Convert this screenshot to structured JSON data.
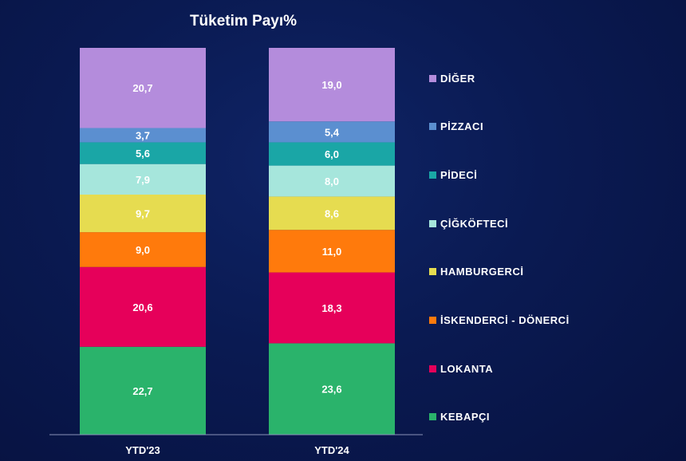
{
  "chart_data": {
    "type": "bar",
    "stacked": true,
    "percent_stacked": true,
    "title": "Tüketim Payı%",
    "categories": [
      "YTD'23",
      "YTD'24"
    ],
    "series": [
      {
        "name": "KEBAPÇI",
        "color": "#2ab36b",
        "values": [
          22.7,
          23.6
        ],
        "labels": [
          "22,7",
          "23,6"
        ]
      },
      {
        "name": "LOKANTA",
        "color": "#e6005a",
        "values": [
          20.6,
          18.3
        ],
        "labels": [
          "20,6",
          "18,3"
        ]
      },
      {
        "name": "İSKENDERCİ - DÖNERCİ",
        "color": "#ff7a0c",
        "values": [
          9.0,
          11.0
        ],
        "labels": [
          "9,0",
          "11,0"
        ]
      },
      {
        "name": "HAMBURGERCİ",
        "color": "#e6dc50",
        "values": [
          9.7,
          8.6
        ],
        "labels": [
          "9,7",
          "8,6"
        ]
      },
      {
        "name": "ÇİĞKÖFTECİ",
        "color": "#a6e6dc",
        "values": [
          7.9,
          8.0
        ],
        "labels": [
          "7,9",
          "8,0"
        ]
      },
      {
        "name": "PİDECİ",
        "color": "#1aa6a6",
        "values": [
          5.6,
          6.0
        ],
        "labels": [
          "5,6",
          "6,0"
        ]
      },
      {
        "name": "PİZZACI",
        "color": "#5b8fd0",
        "values": [
          3.7,
          5.4
        ],
        "labels": [
          "3,7",
          "5,4"
        ]
      },
      {
        "name": "DİĞER",
        "color": "#b48cdc",
        "values": [
          20.7,
          19.0
        ],
        "labels": [
          "20,7",
          "19,0"
        ]
      }
    ],
    "legend_position": "right",
    "grid": false
  }
}
